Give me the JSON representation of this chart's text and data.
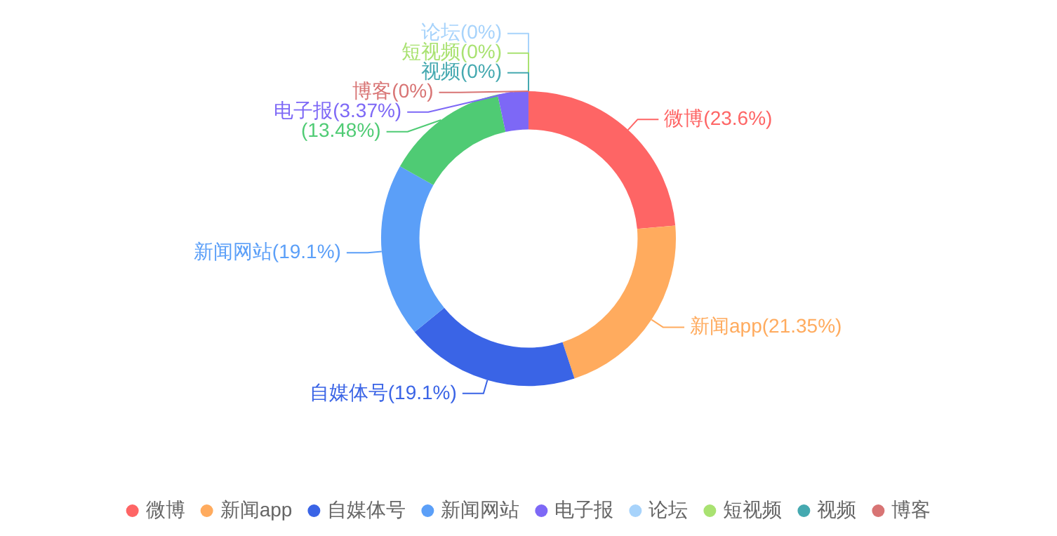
{
  "chart_data": {
    "type": "donut",
    "categories": [
      "微博",
      "新闻app",
      "自媒体号",
      "新闻网站",
      null,
      "电子报",
      "论坛",
      "短视频",
      "视频",
      "博客"
    ],
    "values": [
      23.6,
      21.35,
      19.1,
      19.1,
      13.48,
      3.37,
      0,
      0,
      0,
      0
    ],
    "colors": [
      "#fe6565",
      "#ffab5e",
      "#3a64e6",
      "#5b9ff8",
      "#4fcb74",
      "#7d68f6",
      "#a7d3fb",
      "#a9e271",
      "#45a9b0",
      "#d87474"
    ],
    "value_labels": [
      "微博(23.6%)",
      "新闻app(21.35%)",
      "自媒体号(19.1%)",
      "新闻网站(19.1%)",
      "(13.48%)",
      "电子报(3.37%)",
      "论坛(0%)",
      "短视频(0%)",
      "视频(0%)",
      "博客(0%)"
    ],
    "legend": "bottom"
  }
}
